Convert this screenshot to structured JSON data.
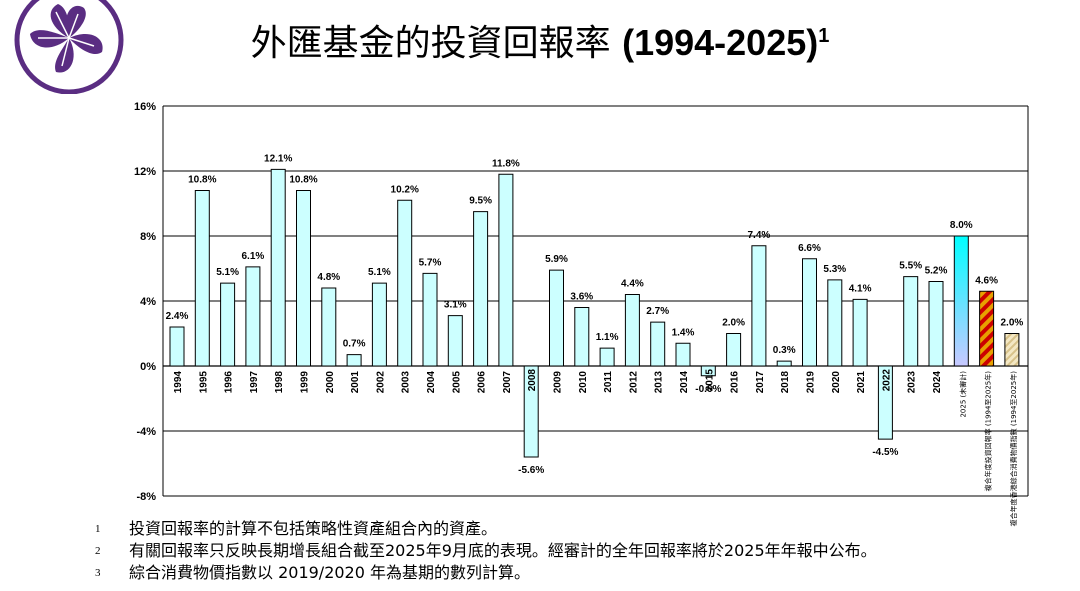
{
  "title": {
    "cjk": "外匯基金的投資回報率",
    "years": "(1994-2025)",
    "note_mark": "1"
  },
  "colors": {
    "bar_fill": "#ccffff",
    "bar_stroke": "#000000",
    "gradient_top": "#00ffff",
    "gradient_bottom": "#c8c8ff",
    "hatch_orange": "#e8a000",
    "hatch_red": "#cc0000",
    "hatch_tan": "#d8c28a",
    "logo_purple": "#5a2d82"
  },
  "chart_data": {
    "type": "bar",
    "ylabel": "",
    "xlabel": "",
    "ylim": [
      -8,
      16
    ],
    "yticks": [
      "16%",
      "12%",
      "8%",
      "4%",
      "0%",
      "-4%",
      "-8%"
    ],
    "grid": true,
    "categories": [
      "1994",
      "1995",
      "1996",
      "1997",
      "1998",
      "1999",
      "2000",
      "2001",
      "2002",
      "2003",
      "2004",
      "2005",
      "2006",
      "2007",
      "2008",
      "2009",
      "2010",
      "2011",
      "2012",
      "2013",
      "2014",
      "2015",
      "2016",
      "2017",
      "2018",
      "2019",
      "2020",
      "2021",
      "2022",
      "2023",
      "2024"
    ],
    "values": [
      2.4,
      10.8,
      5.1,
      6.1,
      12.1,
      10.8,
      4.8,
      0.7,
      5.1,
      10.2,
      5.7,
      3.1,
      9.5,
      11.8,
      -5.6,
      5.9,
      3.6,
      1.1,
      4.4,
      2.7,
      1.4,
      -0.6,
      2.0,
      7.4,
      0.3,
      6.6,
      5.3,
      4.1,
      -4.5,
      5.5,
      5.2
    ],
    "value_labels": [
      "2.4%",
      "10.8%",
      "5.1%",
      "6.1%",
      "12.1%",
      "10.8%",
      "4.8%",
      "0.7%",
      "5.1%",
      "10.2%",
      "5.7%",
      "3.1%",
      "9.5%",
      "11.8%",
      "-5.6%",
      "5.9%",
      "3.6%",
      "1.1%",
      "4.4%",
      "2.7%",
      "1.4%",
      "-0.6%",
      "2.0%",
      "7.4%",
      "0.3%",
      "6.6%",
      "5.3%",
      "4.1%",
      "-4.5%",
      "5.5%",
      "5.2%"
    ],
    "special_bars": [
      {
        "category": "2025 (未審計)",
        "value": 8.0,
        "label": "8.0%",
        "style": "gradient"
      },
      {
        "category": "複合年度投資回報率 (1994至2025年)",
        "value": 4.6,
        "label": "4.6%",
        "style": "hatch-red"
      },
      {
        "category": "複合年度香港綜合消費物價指數 (1994至2025年)",
        "value": 2.0,
        "label": "2.0%",
        "style": "hatch-tan"
      }
    ]
  },
  "footnotes": [
    {
      "num": "1",
      "text": "投資回報率的計算不包括策略性資產組合內的資產。"
    },
    {
      "num": "2",
      "text": "有關回報率只反映長期增長組合截至2025年9月底的表現。經審計的全年回報率將於2025年年報中公布。"
    },
    {
      "num": "3",
      "text": "綜合消費物價指數以 2019/2020 年為基期的數列計算。"
    }
  ]
}
